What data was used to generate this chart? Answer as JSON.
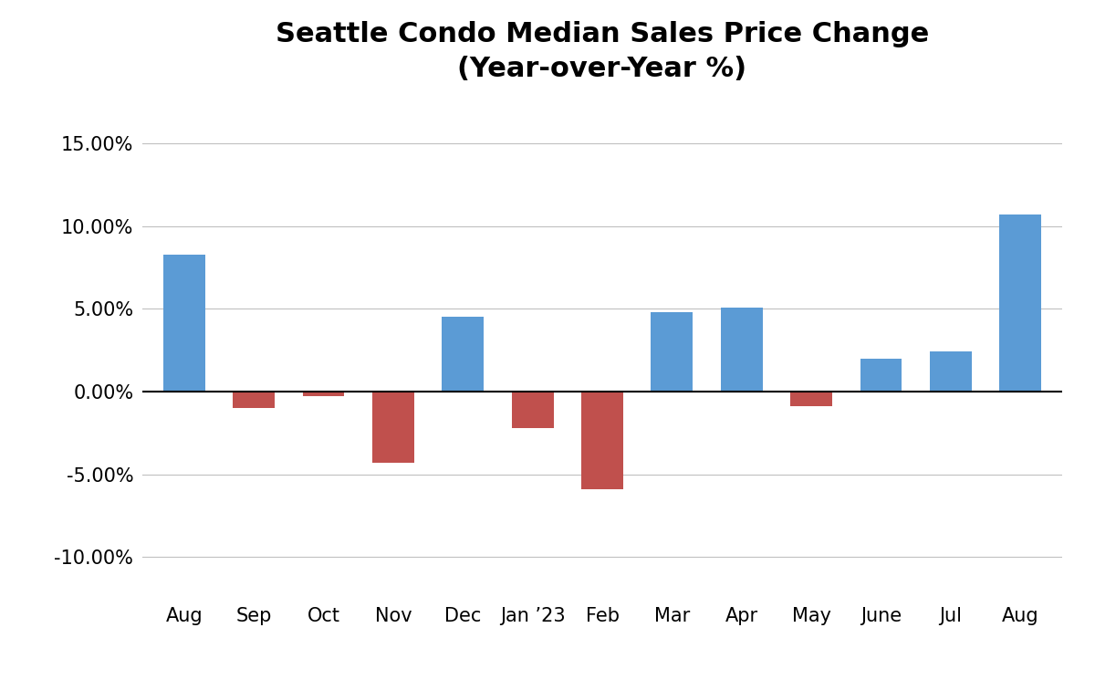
{
  "categories": [
    "Aug",
    "Sep",
    "Oct",
    "Nov",
    "Dec",
    "Jan ’23",
    "Feb",
    "Mar",
    "Apr",
    "May",
    "June",
    "Jul",
    "Aug"
  ],
  "values": [
    8.3,
    -1.0,
    -0.3,
    -4.3,
    4.5,
    -2.2,
    -5.9,
    4.8,
    5.1,
    -0.9,
    2.0,
    2.4,
    10.7
  ],
  "positive_color": "#5B9BD5",
  "negative_color": "#C0504D",
  "title_line1": "Seattle Condo Median Sales Price Change",
  "title_line2": "(Year-over-Year %)",
  "ylim": [
    -12.5,
    17.5
  ],
  "yticks": [
    -10,
    -5,
    0,
    5,
    10,
    15
  ],
  "background_color": "#ffffff",
  "grid_color": "#c0c0c0",
  "title_fontsize": 22,
  "tick_fontsize": 15
}
